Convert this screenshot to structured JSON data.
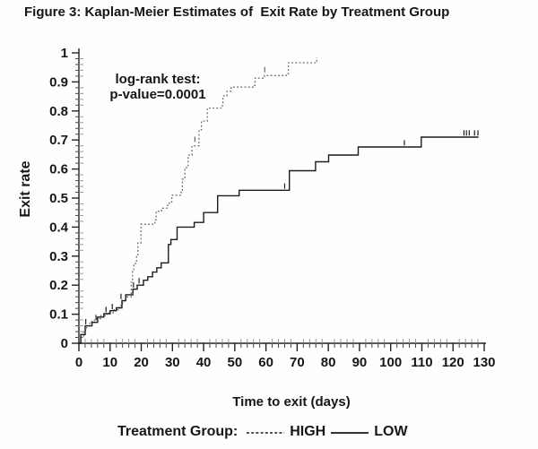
{
  "title": "Figure 3: Kaplan-Meier Estimates of  Exit Rate by Treatment Group",
  "annotation": {
    "line1": "log-rank test:",
    "line2": "p-value=0.0001"
  },
  "axes": {
    "y_label": "Exit rate",
    "x_label": "Time to exit (days)"
  },
  "legend": {
    "label": "Treatment Group:",
    "items": [
      {
        "name": "HIGH",
        "line_style": "dotted"
      },
      {
        "name": "LOW",
        "line_style": "solid"
      }
    ]
  },
  "colors": {
    "text": "#161616",
    "axis": "#222222",
    "minor_tick_inner": "#9a9a9a",
    "minor_tick_outer": "#444444",
    "high_curve": "#6a6a6a",
    "low_curve": "#1c1c1c"
  },
  "chart_data": {
    "type": "line",
    "subtype": "kaplan-meier-step",
    "title": "Figure 3: Kaplan-Meier Estimates of Exit Rate by Treatment Group",
    "xlabel": "Time to exit (days)",
    "ylabel": "Exit rate",
    "annotation": "log-rank test: p-value=0.0001",
    "xlim": [
      0,
      130
    ],
    "ylim": [
      0,
      1
    ],
    "x_ticks": [
      0,
      10,
      20,
      30,
      40,
      50,
      60,
      70,
      80,
      90,
      100,
      110,
      120,
      130
    ],
    "y_ticks": [
      0,
      0.1,
      0.2,
      0.3,
      0.4,
      0.5,
      0.6,
      0.7,
      0.8,
      0.9,
      1
    ],
    "x_minor_step": 2,
    "y_minor_step": 0.02,
    "grid": false,
    "legend_position": "bottom",
    "series": [
      {
        "name": "HIGH",
        "line_style": "dotted",
        "points": [
          [
            0,
            0
          ],
          [
            0.7,
            0.02
          ],
          [
            1.5,
            0.045
          ],
          [
            2.5,
            0.06
          ],
          [
            3.5,
            0.075
          ],
          [
            5,
            0.085
          ],
          [
            7,
            0.095
          ],
          [
            9,
            0.105
          ],
          [
            11,
            0.115
          ],
          [
            13,
            0.13
          ],
          [
            14,
            0.145
          ],
          [
            15,
            0.16
          ],
          [
            16.8,
            0.21
          ],
          [
            17.2,
            0.25
          ],
          [
            17.6,
            0.275
          ],
          [
            18.5,
            0.305
          ],
          [
            18.9,
            0.345
          ],
          [
            19.9,
            0.41
          ],
          [
            24.4,
            0.425
          ],
          [
            24.8,
            0.455
          ],
          [
            26.5,
            0.465
          ],
          [
            28.2,
            0.475
          ],
          [
            29,
            0.487
          ],
          [
            29.8,
            0.51
          ],
          [
            32.8,
            0.52
          ],
          [
            33.2,
            0.565
          ],
          [
            34,
            0.605
          ],
          [
            35,
            0.648
          ],
          [
            36.3,
            0.68
          ],
          [
            38.5,
            0.735
          ],
          [
            39.3,
            0.765
          ],
          [
            41.2,
            0.81
          ],
          [
            45.6,
            0.818
          ],
          [
            46.2,
            0.852
          ],
          [
            47.5,
            0.868
          ],
          [
            48.8,
            0.882
          ],
          [
            55.9,
            0.888
          ],
          [
            56.5,
            0.913
          ],
          [
            59.5,
            0.922
          ],
          [
            66.5,
            0.928
          ],
          [
            67.2,
            0.966
          ],
          [
            75.8,
            0.97
          ],
          [
            76.3,
            0.985
          ]
        ],
        "censor_marks": [
          [
            37.2,
            0.69
          ],
          [
            59.6,
            0.93
          ]
        ]
      },
      {
        "name": "LOW",
        "line_style": "solid",
        "points": [
          [
            0,
            0
          ],
          [
            0.6,
            0.03
          ],
          [
            2,
            0.06
          ],
          [
            4.2,
            0.072
          ],
          [
            6,
            0.09
          ],
          [
            8,
            0.102
          ],
          [
            10,
            0.112
          ],
          [
            12,
            0.122
          ],
          [
            13.8,
            0.147
          ],
          [
            15,
            0.167
          ],
          [
            17.3,
            0.186
          ],
          [
            18.7,
            0.2
          ],
          [
            20.7,
            0.217
          ],
          [
            22.1,
            0.229
          ],
          [
            23.6,
            0.245
          ],
          [
            25,
            0.26
          ],
          [
            26.4,
            0.277
          ],
          [
            28.7,
            0.34
          ],
          [
            29.5,
            0.357
          ],
          [
            31.5,
            0.4
          ],
          [
            37,
            0.416
          ],
          [
            40,
            0.45
          ],
          [
            44.5,
            0.508
          ],
          [
            51.4,
            0.527
          ],
          [
            67.5,
            0.594
          ],
          [
            75.9,
            0.625
          ],
          [
            80.1,
            0.648
          ],
          [
            89.6,
            0.676
          ],
          [
            109.8,
            0.71
          ],
          [
            128.2,
            0.71
          ]
        ],
        "censor_marks": [
          [
            2.2,
            0.062
          ],
          [
            5.5,
            0.076
          ],
          [
            8.7,
            0.104
          ],
          [
            10.7,
            0.114
          ],
          [
            13.5,
            0.149
          ],
          [
            17.5,
            0.188
          ],
          [
            19.3,
            0.203
          ],
          [
            66,
            0.529
          ],
          [
            104.4,
            0.678
          ],
          [
            123.5,
            0.712
          ],
          [
            124.3,
            0.712
          ],
          [
            125.2,
            0.712
          ],
          [
            126.9,
            0.712
          ],
          [
            128,
            0.712
          ]
        ]
      }
    ]
  }
}
